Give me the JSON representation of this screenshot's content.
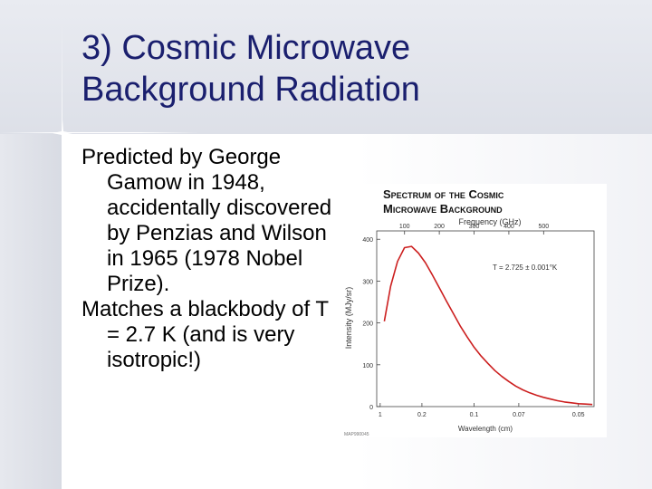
{
  "slide": {
    "title_line1": "3) Cosmic Microwave",
    "title_line2": "Background Radiation",
    "paragraphs": [
      "Predicted by George Gamow in 1948, accidentally discovered by Penzias and Wilson in 1965 (1978 Nobel Prize).",
      "Matches a blackbody of T = 2.7 K (and is very isotropic!)"
    ]
  },
  "colors": {
    "title": "#1a1f6e",
    "curve": "#cc1f1f",
    "axis": "#444444"
  },
  "chart_data": {
    "type": "line",
    "title_line1": "Spectrum of the Cosmic",
    "title_line2": "Microwave Background",
    "top_axis_label": "Frequency (GHz)",
    "top_ticks": [
      100,
      200,
      300,
      400,
      500
    ],
    "xlabel": "Wavelength (cm)",
    "x_ticks": [
      "1",
      "0.2",
      "0.1",
      "0.07",
      "0.05"
    ],
    "ylabel": "Intensity (MJy/sr)",
    "y_ticks": [
      0,
      100,
      200,
      300,
      400
    ],
    "ylim": [
      0,
      420
    ],
    "xlim_ghz": [
      20,
      645
    ],
    "annotation": "T = 2.725 ± 0.001°K",
    "footer_code": "MAP990045",
    "grid": false,
    "series": [
      {
        "x": [
          42,
          60,
          80,
          100,
          120,
          140,
          160,
          180,
          200,
          220,
          240,
          260,
          280,
          300,
          320,
          340,
          360,
          380,
          400,
          420,
          440,
          460,
          480,
          500,
          520,
          540,
          560,
          580,
          600,
          620,
          640
        ],
        "y": [
          204,
          288,
          347,
          380,
          383,
          367,
          344,
          315,
          284,
          253,
          223,
          193,
          167,
          142,
          121,
          103,
          86,
          72,
          60,
          49,
          40,
          33,
          27,
          22,
          18,
          14,
          11,
          9,
          7,
          6,
          5
        ]
      }
    ]
  }
}
